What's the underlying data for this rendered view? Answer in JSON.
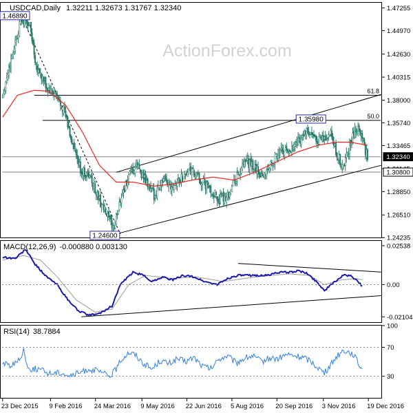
{
  "header": {
    "symbol": "USDCAD,Daily",
    "ohlc": "1.32211 1.32673 1.31767 1.32340"
  },
  "watermark": "ActionForex.com",
  "colors": {
    "candle": "#2a7a6a",
    "ma_red": "#e8251e",
    "macd_blue": "#1a1aa8",
    "signal": "#9a9a9a",
    "rsi_blue": "#2f7fe0",
    "text": "#000000",
    "label_border": "#2a2aa0"
  },
  "chart_data": [
    {
      "type": "candlestick",
      "title": "USDCAD,Daily",
      "ylim": [
        1.2425,
        1.4777
      ],
      "y_ticks": [
        "1.47255",
        "1.44970",
        "1.42630",
        "1.40315",
        "1.38000",
        "1.35740",
        "1.33465",
        "1.31145",
        "1.28850",
        "1.26510",
        "1.24235"
      ],
      "x_ticks": [
        "23 Dec 2015",
        "9 Feb 2016",
        "24 Mar 2016",
        "9 May 2016",
        "22 Jun 2016",
        "5 Aug 2016",
        "20 Sep 2016",
        "3 Nov 2016",
        "19 Dec 2016"
      ],
      "close_anchors": [
        [
          0,
          1.385
        ],
        [
          10,
          1.43
        ],
        [
          18,
          1.462
        ],
        [
          26,
          1.455
        ],
        [
          32,
          1.415
        ],
        [
          42,
          1.392
        ],
        [
          50,
          1.385
        ],
        [
          58,
          1.372
        ],
        [
          66,
          1.338
        ],
        [
          74,
          1.31
        ],
        [
          82,
          1.305
        ],
        [
          92,
          1.28
        ],
        [
          100,
          1.262
        ],
        [
          106,
          1.252
        ],
        [
          112,
          1.282
        ],
        [
          120,
          1.302
        ],
        [
          128,
          1.315
        ],
        [
          136,
          1.298
        ],
        [
          144,
          1.285
        ],
        [
          152,
          1.3
        ],
        [
          160,
          1.295
        ],
        [
          168,
          1.3
        ],
        [
          178,
          1.31
        ],
        [
          186,
          1.302
        ],
        [
          196,
          1.292
        ],
        [
          206,
          1.28
        ],
        [
          214,
          1.285
        ],
        [
          222,
          1.302
        ],
        [
          232,
          1.318
        ],
        [
          240,
          1.312
        ],
        [
          248,
          1.304
        ],
        [
          256,
          1.318
        ],
        [
          264,
          1.328
        ],
        [
          272,
          1.33
        ],
        [
          280,
          1.338
        ],
        [
          288,
          1.348
        ],
        [
          296,
          1.342
        ],
        [
          304,
          1.34
        ],
        [
          312,
          1.345
        ],
        [
          318,
          1.325
        ],
        [
          324,
          1.312
        ],
        [
          330,
          1.335
        ],
        [
          336,
          1.352
        ],
        [
          340,
          1.35
        ],
        [
          344,
          1.333
        ],
        [
          347,
          1.3234
        ]
      ],
      "ma_anchors": [
        [
          0,
          1.363
        ],
        [
          14,
          1.385
        ],
        [
          30,
          1.39
        ],
        [
          44,
          1.389
        ],
        [
          60,
          1.375
        ],
        [
          76,
          1.348
        ],
        [
          92,
          1.315
        ],
        [
          108,
          1.298
        ],
        [
          124,
          1.298
        ],
        [
          144,
          1.294
        ],
        [
          162,
          1.296
        ],
        [
          180,
          1.3
        ],
        [
          200,
          1.303
        ],
        [
          220,
          1.3
        ],
        [
          240,
          1.308
        ],
        [
          260,
          1.318
        ],
        [
          280,
          1.328
        ],
        [
          300,
          1.335
        ],
        [
          318,
          1.338
        ],
        [
          330,
          1.338
        ],
        [
          347,
          1.335
        ]
      ],
      "horizontal_levels": [
        {
          "price": 1.385,
          "label": "61.8"
        },
        {
          "price": 1.3598,
          "label": "50.0"
        },
        {
          "price": 1.3234,
          "label": ""
        },
        {
          "price": 1.308,
          "label": ""
        }
      ],
      "channel_lines": [
        {
          "from": [
            108,
            1.246
          ],
          "to": [
            360,
            1.3148
          ]
        },
        {
          "from": [
            108,
            1.3078
          ],
          "to": [
            360,
            1.3858
          ]
        },
        {
          "from": [
            16,
            1.4689
          ],
          "to": [
            112,
            1.246
          ]
        }
      ],
      "price_boxes": [
        "1.46890",
        "1.24600",
        "1.35980"
      ],
      "axis_boxes": [
        "1.32340",
        "1.30800"
      ]
    },
    {
      "type": "line",
      "title": "MACD(12,26,9)",
      "header_values": "-0.000880 0.003130",
      "ylim": [
        -0.0245,
        0.0285
      ],
      "y_ticks": [
        "0.02538",
        "0.00",
        "-0.021042"
      ],
      "macd_anchors": [
        [
          0,
          0.018
        ],
        [
          12,
          0.017
        ],
        [
          22,
          0.023
        ],
        [
          30,
          0.014
        ],
        [
          42,
          0.005
        ],
        [
          52,
          0.0
        ],
        [
          62,
          -0.01
        ],
        [
          72,
          -0.017
        ],
        [
          82,
          -0.02
        ],
        [
          92,
          -0.019
        ],
        [
          104,
          -0.014
        ],
        [
          112,
          0.0
        ],
        [
          124,
          0.008
        ],
        [
          134,
          0.006
        ],
        [
          142,
          0.002
        ],
        [
          152,
          0.005
        ],
        [
          162,
          0.003
        ],
        [
          172,
          0.006
        ],
        [
          182,
          0.005
        ],
        [
          192,
          0.002
        ],
        [
          204,
          0.0
        ],
        [
          214,
          0.004
        ],
        [
          224,
          0.006
        ],
        [
          234,
          0.006
        ],
        [
          244,
          0.006
        ],
        [
          252,
          0.006
        ],
        [
          262,
          0.008
        ],
        [
          272,
          0.008
        ],
        [
          282,
          0.009
        ],
        [
          290,
          0.007
        ],
        [
          300,
          0.001
        ],
        [
          306,
          -0.004
        ],
        [
          316,
          0.002
        ],
        [
          324,
          0.006
        ],
        [
          330,
          0.006
        ],
        [
          336,
          0.003
        ],
        [
          342,
          -0.0009
        ]
      ],
      "signal_anchors": [
        [
          0,
          0.016
        ],
        [
          20,
          0.019
        ],
        [
          36,
          0.016
        ],
        [
          52,
          0.005
        ],
        [
          70,
          -0.01
        ],
        [
          88,
          -0.018
        ],
        [
          104,
          -0.016
        ],
        [
          120,
          0.0
        ],
        [
          136,
          0.006
        ],
        [
          160,
          0.004
        ],
        [
          184,
          0.005
        ],
        [
          210,
          0.002
        ],
        [
          240,
          0.005
        ],
        [
          272,
          0.007
        ],
        [
          292,
          0.006
        ],
        [
          306,
          0.0
        ],
        [
          322,
          0.003
        ],
        [
          336,
          0.004
        ],
        [
          342,
          0.0031
        ]
      ],
      "trendlines": [
        {
          "from": [
            75,
            -0.021
          ],
          "to": [
            360,
            -0.0072
          ]
        },
        {
          "from": [
            224,
            0.0138
          ],
          "to": [
            360,
            0.0082
          ]
        }
      ]
    },
    {
      "type": "line",
      "title": "RSI(14)",
      "header_values": "38.7884",
      "ylim": [
        0,
        100
      ],
      "y_ticks": [
        "100",
        "70",
        "30"
      ],
      "rsi_anchors": [
        [
          0,
          48
        ],
        [
          8,
          45
        ],
        [
          16,
          52
        ],
        [
          20,
          68
        ],
        [
          24,
          40
        ],
        [
          34,
          40
        ],
        [
          44,
          34
        ],
        [
          56,
          35
        ],
        [
          64,
          30
        ],
        [
          72,
          34
        ],
        [
          82,
          40
        ],
        [
          92,
          36
        ],
        [
          102,
          30
        ],
        [
          108,
          40
        ],
        [
          114,
          55
        ],
        [
          120,
          63
        ],
        [
          126,
          60
        ],
        [
          134,
          48
        ],
        [
          142,
          40
        ],
        [
          150,
          52
        ],
        [
          158,
          47
        ],
        [
          166,
          54
        ],
        [
          174,
          50
        ],
        [
          182,
          56
        ],
        [
          190,
          44
        ],
        [
          198,
          40
        ],
        [
          206,
          54
        ],
        [
          214,
          58
        ],
        [
          222,
          48
        ],
        [
          230,
          55
        ],
        [
          238,
          58
        ],
        [
          246,
          50
        ],
        [
          254,
          55
        ],
        [
          262,
          54
        ],
        [
          270,
          60
        ],
        [
          278,
          58
        ],
        [
          286,
          56
        ],
        [
          292,
          52
        ],
        [
          300,
          42
        ],
        [
          306,
          34
        ],
        [
          312,
          46
        ],
        [
          318,
          58
        ],
        [
          324,
          66
        ],
        [
          330,
          63
        ],
        [
          334,
          60
        ],
        [
          338,
          48
        ],
        [
          342,
          39
        ]
      ]
    }
  ]
}
